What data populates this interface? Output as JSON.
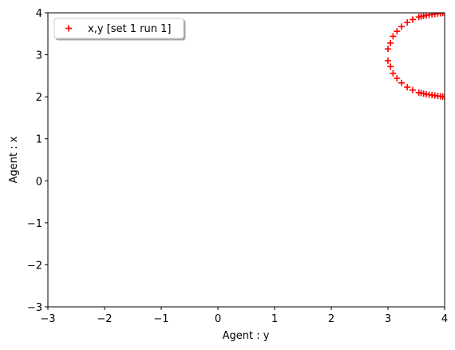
{
  "chart_data": {
    "type": "scatter",
    "title": "",
    "xlabel": "Agent : y",
    "ylabel": "Agent : x",
    "xlim": [
      -3,
      4
    ],
    "ylim": [
      -3,
      4
    ],
    "xticks": [
      "−3",
      "−2",
      "−1",
      "0",
      "1",
      "2",
      "3",
      "4"
    ],
    "yticks": [
      "−3",
      "−2",
      "−1",
      "0",
      "1",
      "2",
      "3",
      "4"
    ],
    "grid": false,
    "legend_position": "upper-left",
    "marker": "plus",
    "series": [
      {
        "name": "x,y [set 1 run 1]",
        "color": "#ff0000",
        "x": [
          4.0,
          3.967,
          3.926,
          3.879,
          3.829,
          3.777,
          3.726,
          3.676,
          3.629,
          3.585,
          3.545,
          3.436,
          3.34,
          3.24,
          3.159,
          3.09,
          3.045,
          3.0,
          3.0,
          3.045,
          3.09,
          3.159,
          3.24,
          3.34,
          3.436,
          3.545,
          3.585,
          3.629,
          3.676,
          3.726,
          3.777,
          3.829,
          3.879,
          3.926,
          3.967,
          4.0
        ],
        "y": [
          2.0,
          2.005,
          2.012,
          2.02,
          2.03,
          2.04,
          2.05,
          2.062,
          2.075,
          2.088,
          2.1,
          2.16,
          2.23,
          2.33,
          2.44,
          2.56,
          2.72,
          2.86,
          3.14,
          3.28,
          3.44,
          3.56,
          3.67,
          3.77,
          3.84,
          3.9,
          3.912,
          3.925,
          3.938,
          3.95,
          3.96,
          3.97,
          3.98,
          3.988,
          3.995,
          4.0
        ]
      }
    ]
  }
}
